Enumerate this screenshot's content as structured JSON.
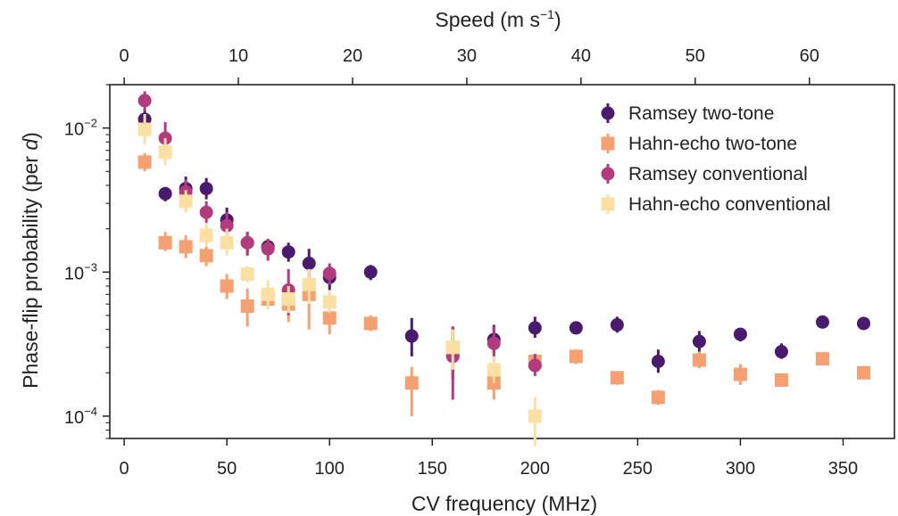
{
  "chart_data": {
    "type": "scatter",
    "xscale": "linear",
    "yscale": "log",
    "xlabel": "CV frequency (MHz)",
    "ylabel_parts": [
      "Phase-flip probability (per ",
      "d",
      ")"
    ],
    "top_xlabel": "Speed (m s",
    "top_xlabel_sup": "−1",
    "top_xlabel_end": ")",
    "xlim": [
      -7,
      375
    ],
    "ylim": [
      7e-05,
      0.02
    ],
    "x_ticks": [
      0,
      50,
      100,
      150,
      200,
      250,
      300,
      350
    ],
    "x_tick_labels": [
      "0",
      "50",
      "100",
      "150",
      "200",
      "250",
      "300",
      "350"
    ],
    "top_ticks": [
      0,
      10,
      20,
      30,
      40,
      50,
      60
    ],
    "top_tick_labels": [
      "0",
      "10",
      "20",
      "30",
      "40",
      "50",
      "60"
    ],
    "top_scale_mhz_per_unit": 5.56,
    "y_ticks": [
      0.0001,
      0.001,
      0.01
    ],
    "y_tick_base": [
      "10",
      "10",
      "10"
    ],
    "y_tick_exp": [
      "−4",
      "−3",
      "−2"
    ],
    "legend_position": "top-right",
    "series": [
      {
        "name": "Ramsey two-tone",
        "marker": "circle",
        "color": "#4a1a6e",
        "points": [
          [
            10,
            0.0115,
            0.0098,
            0.0135
          ],
          [
            20,
            0.0035,
            0.0031,
            0.0039
          ],
          [
            30,
            0.0038,
            0.0032,
            0.0046
          ],
          [
            40,
            0.0038,
            0.0032,
            0.0045
          ],
          [
            50,
            0.0023,
            0.0019,
            0.0028
          ],
          [
            60,
            0.0016,
            0.00135,
            0.0019
          ],
          [
            70,
            0.0015,
            0.0013,
            0.0017
          ],
          [
            80,
            0.00138,
            0.00118,
            0.0016
          ],
          [
            90,
            0.00115,
            0.00092,
            0.00145
          ],
          [
            100,
            0.00092,
            0.00075,
            0.0011
          ],
          [
            120,
            0.001,
            0.00088,
            0.00112
          ],
          [
            140,
            0.00036,
            0.00026,
            0.00048
          ],
          [
            160,
            0.00027,
            0.00018,
            0.00041
          ],
          [
            180,
            0.00034,
            0.00027,
            0.00043
          ],
          [
            200,
            0.00041,
            0.00035,
            0.00049
          ],
          [
            220,
            0.00041,
            0.00037,
            0.00045
          ],
          [
            240,
            0.00043,
            0.00038,
            0.00049
          ],
          [
            260,
            0.00024,
            0.0002,
            0.00029
          ],
          [
            280,
            0.00033,
            0.00028,
            0.00039
          ],
          [
            300,
            0.00037,
            0.00033,
            0.00041
          ],
          [
            320,
            0.00028,
            0.00025,
            0.00032
          ],
          [
            340,
            0.00045,
            0.00041,
            0.00049
          ],
          [
            360,
            0.00044,
            0.00041,
            0.00047
          ]
        ]
      },
      {
        "name": "Hahn-echo two-tone",
        "marker": "square",
        "color": "#f5a070",
        "points": [
          [
            10,
            0.0058,
            0.005,
            0.0067
          ],
          [
            20,
            0.0016,
            0.0014,
            0.0019
          ],
          [
            30,
            0.0015,
            0.00125,
            0.0018
          ],
          [
            40,
            0.0013,
            0.0011,
            0.0015
          ],
          [
            50,
            0.0008,
            0.00065,
            0.00097
          ],
          [
            60,
            0.00058,
            0.00042,
            0.00077
          ],
          [
            70,
            0.00065,
            0.00057,
            0.00077
          ],
          [
            80,
            0.0006,
            0.00045,
            0.00077
          ],
          [
            90,
            0.0007,
            0.0004,
            0.00095
          ],
          [
            100,
            0.00048,
            0.00037,
            0.00061
          ],
          [
            120,
            0.00044,
            0.00039,
            0.0005
          ],
          [
            140,
            0.00017,
            0.0001,
            0.00022
          ],
          [
            160,
            0.0003,
            0.00022,
            0.00042
          ],
          [
            180,
            0.00017,
            0.00013,
            0.00021
          ],
          [
            200,
            0.00024,
            0.00021,
            0.00027
          ],
          [
            220,
            0.00026,
            0.00023,
            0.00029
          ],
          [
            240,
            0.000185,
            0.000165,
            0.000205
          ],
          [
            260,
            0.000135,
            0.00012,
            0.000152
          ],
          [
            280,
            0.000245,
            0.000215,
            0.00028
          ],
          [
            300,
            0.000195,
            0.000165,
            0.00023
          ],
          [
            320,
            0.000178,
            0.000162,
            0.000196
          ],
          [
            340,
            0.00025,
            0.000228,
            0.000275
          ],
          [
            360,
            0.0002,
            0.000182,
            0.00022
          ]
        ]
      },
      {
        "name": "Ramsey conventional",
        "marker": "circle",
        "color": "#b33a7d",
        "points": [
          [
            10,
            0.0155,
            0.013,
            0.018
          ],
          [
            20,
            0.0085,
            0.0065,
            0.011
          ],
          [
            30,
            0.0036,
            0.003,
            0.0044
          ],
          [
            40,
            0.0026,
            0.0022,
            0.0031
          ],
          [
            50,
            0.0021,
            0.0017,
            0.0026
          ],
          [
            60,
            0.0016,
            0.0013,
            0.0019
          ],
          [
            70,
            0.00145,
            0.0012,
            0.0017
          ],
          [
            80,
            0.00075,
            0.0005,
            0.00105
          ],
          [
            90,
            0.00082,
            0.00065,
            0.00105
          ],
          [
            100,
            0.00098,
            0.00082,
            0.00115
          ],
          [
            160,
            0.00026,
            0.00013,
            0.00042
          ],
          [
            180,
            0.00032,
            0.00024,
            0.00042
          ],
          [
            200,
            0.000225,
            0.00019,
            0.00027
          ]
        ]
      },
      {
        "name": "Hahn-echo conventional",
        "marker": "square",
        "color": "#fbe0a2",
        "points": [
          [
            10,
            0.0098,
            0.0077,
            0.0125
          ],
          [
            20,
            0.0068,
            0.0055,
            0.0085
          ],
          [
            30,
            0.0031,
            0.0026,
            0.0037
          ],
          [
            40,
            0.0018,
            0.0015,
            0.0022
          ],
          [
            50,
            0.0016,
            0.0013,
            0.002
          ],
          [
            60,
            0.00097,
            0.00085,
            0.0011
          ],
          [
            70,
            0.0007,
            0.00055,
            0.00088
          ],
          [
            80,
            0.00065,
            0.00052,
            0.0008
          ],
          [
            90,
            0.00082,
            0.0006,
            0.00105
          ],
          [
            100,
            0.00062,
            0.00052,
            0.00074
          ],
          [
            160,
            0.0003,
            0.00021,
            0.0004
          ],
          [
            180,
            0.00021,
            0.00017,
            0.00026
          ],
          [
            200,
            0.0001,
            6.2e-05,
            0.000135
          ]
        ]
      }
    ]
  }
}
